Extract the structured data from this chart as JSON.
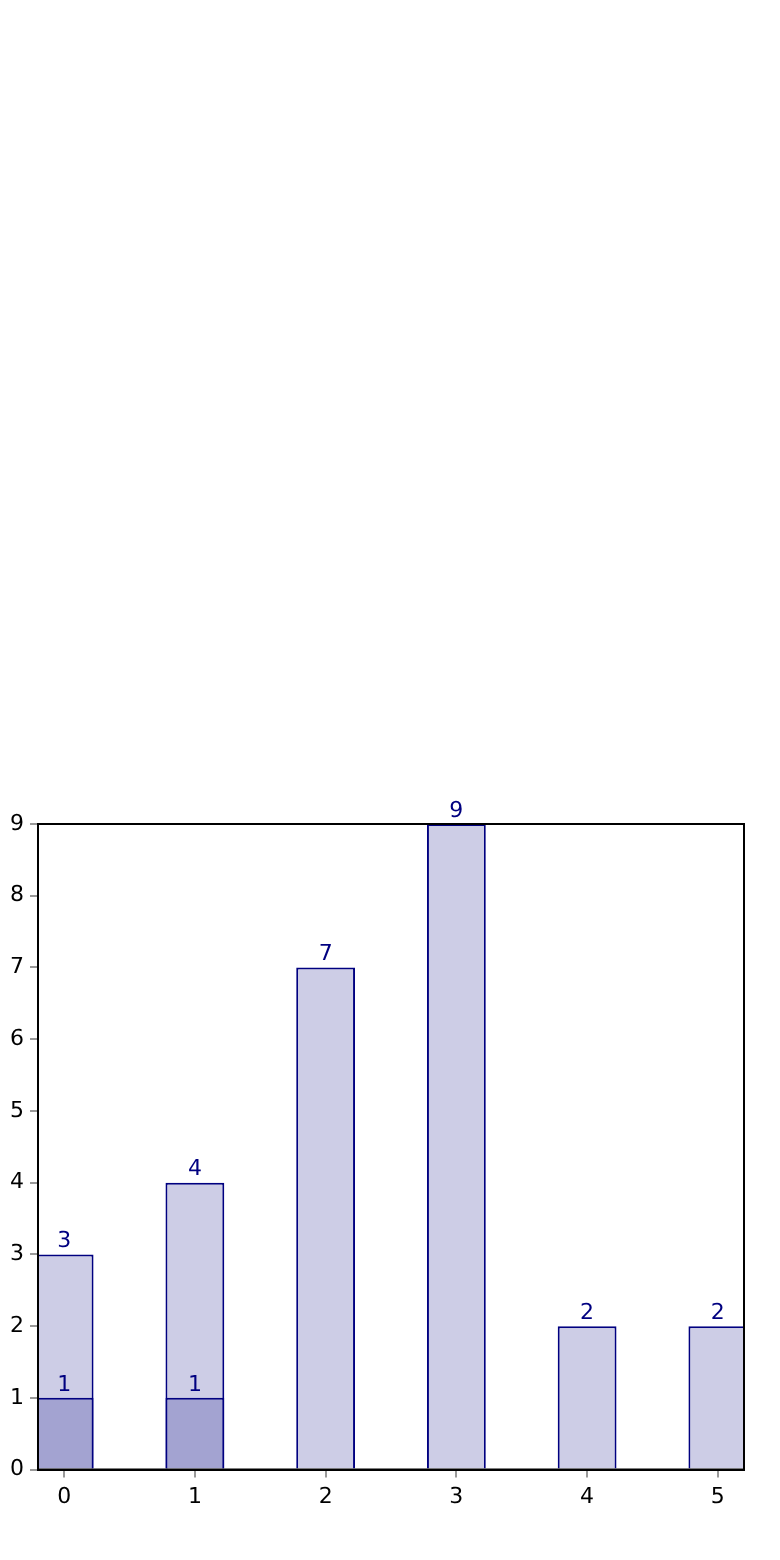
{
  "chart_data": {
    "type": "bar",
    "x": [
      0,
      1,
      2,
      3,
      4,
      5
    ],
    "series": [
      {
        "color": "#cdcde6",
        "values": [
          3,
          4,
          7,
          9,
          2,
          2
        ]
      },
      {
        "color": "#a3a3d1",
        "values": [
          1,
          1,
          null,
          null,
          null,
          null
        ]
      }
    ],
    "xlim": [
      -0.2,
      5.2
    ],
    "xticks": [
      0,
      1,
      2,
      3,
      4,
      5
    ],
    "ylim": [
      0,
      9
    ],
    "yticks": [
      0,
      1,
      2,
      3,
      4,
      5,
      6,
      7,
      8,
      9
    ],
    "grid": false,
    "legend": false,
    "data_labels": true
  }
}
